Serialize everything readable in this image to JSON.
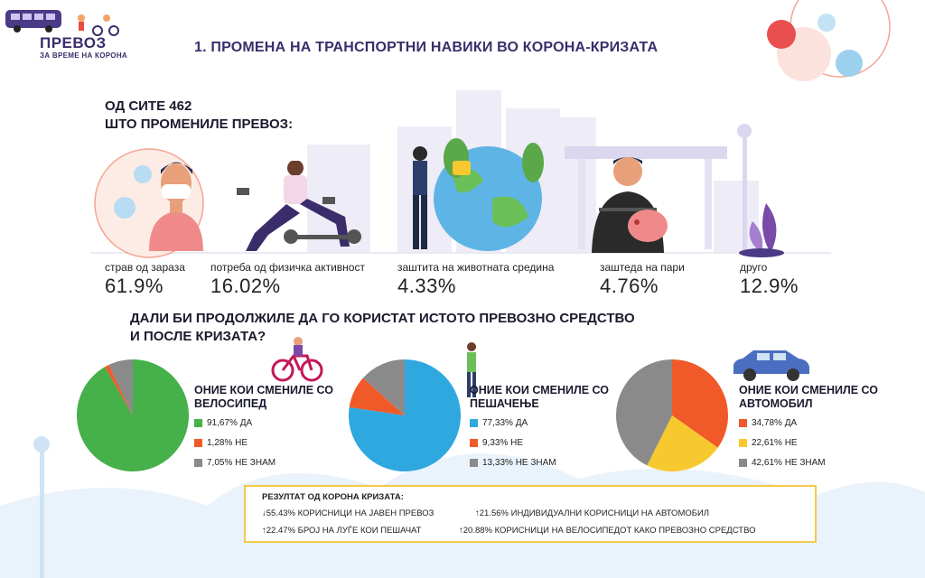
{
  "logo": {
    "title": "ПРЕВОЗ",
    "subtitle": "ЗА ВРЕМЕ НА КОРОНА"
  },
  "title": "1. ПРОМЕНА НА ТРАНСПОРТНИ НАВИКИ ВО КОРОНА-КРИЗАТА",
  "intro": {
    "line1": "ОД СИТЕ 462",
    "line2": "ШТО ПРОМЕНИЛЕ ПРЕВОЗ:"
  },
  "reasons": [
    {
      "label": "страв од зараза",
      "value": "61.9%"
    },
    {
      "label": "потреба од физичка активност",
      "value": "16.02%"
    },
    {
      "label": "заштита на животната средина",
      "value": "4.33%"
    },
    {
      "label": "заштеда на пари",
      "value": "4.76%"
    },
    {
      "label": "друго",
      "value": "12.9%"
    }
  ],
  "question": {
    "line1": "ДАЛИ БИ ПРОДОЛЖИЛЕ ДА ГО КОРИСТАТ ИСТОТО ПРЕВОЗНО СРЕДСТВО",
    "line2": "И ПОСЛЕ КРИЗАТА?"
  },
  "chart_data": [
    {
      "type": "pie",
      "title": "ОНИЕ КОИ СМЕНИЛЕ СО ВЕЛОСИПЕД",
      "slices": [
        {
          "label": "91,67% ДА",
          "value": 91.67,
          "color": "#46b04a"
        },
        {
          "label": "1,28% НЕ",
          "value": 1.28,
          "color": "#f05a28"
        },
        {
          "label": "7,05% НЕ ЗНАМ",
          "value": 7.05,
          "color": "#8a8a8a"
        }
      ]
    },
    {
      "type": "pie",
      "title": "ОНИЕ КОИ СМЕНИЛЕ СО ПЕШАЧЕЊЕ",
      "slices": [
        {
          "label": "77,33% ДА",
          "value": 77.33,
          "color": "#2fa8e0"
        },
        {
          "label": "9,33% НЕ",
          "value": 9.33,
          "color": "#f05a28"
        },
        {
          "label": "13,33% НЕ ЗНАМ",
          "value": 13.33,
          "color": "#8a8a8a"
        }
      ]
    },
    {
      "type": "pie",
      "title": "ОНИЕ КОИ СМЕНИЛЕ СО АВТОМОБИЛ",
      "slices": [
        {
          "label": "34,78% ДА",
          "value": 34.78,
          "color": "#f05a28"
        },
        {
          "label": "22,61% НЕ",
          "value": 22.61,
          "color": "#f7c92e"
        },
        {
          "label": "42,61% НЕ ЗНАМ",
          "value": 42.61,
          "color": "#8a8a8a"
        }
      ]
    }
  ],
  "result": {
    "heading": "РЕЗУЛТАТ ОД КОРОНА КРИЗАТА:",
    "line1a": "↓55.43% КОРИСНИЦИ НА ЈАВЕН ПРЕВОЗ",
    "line1b": "↑21.56% ИНДИВИДУАЛНИ КОРИСНИЦИ НА АВТОМОБИЛ",
    "line2a": "↑22.47% БРОЈ НА ЛУЃЕ КОИ ПЕШАЧАТ",
    "line2b": "↑20.88% КОРИСНИЦИ НА ВЕЛОСИПЕДОТ КАКО ПРЕВОЗНО СРЕДСТВО"
  }
}
